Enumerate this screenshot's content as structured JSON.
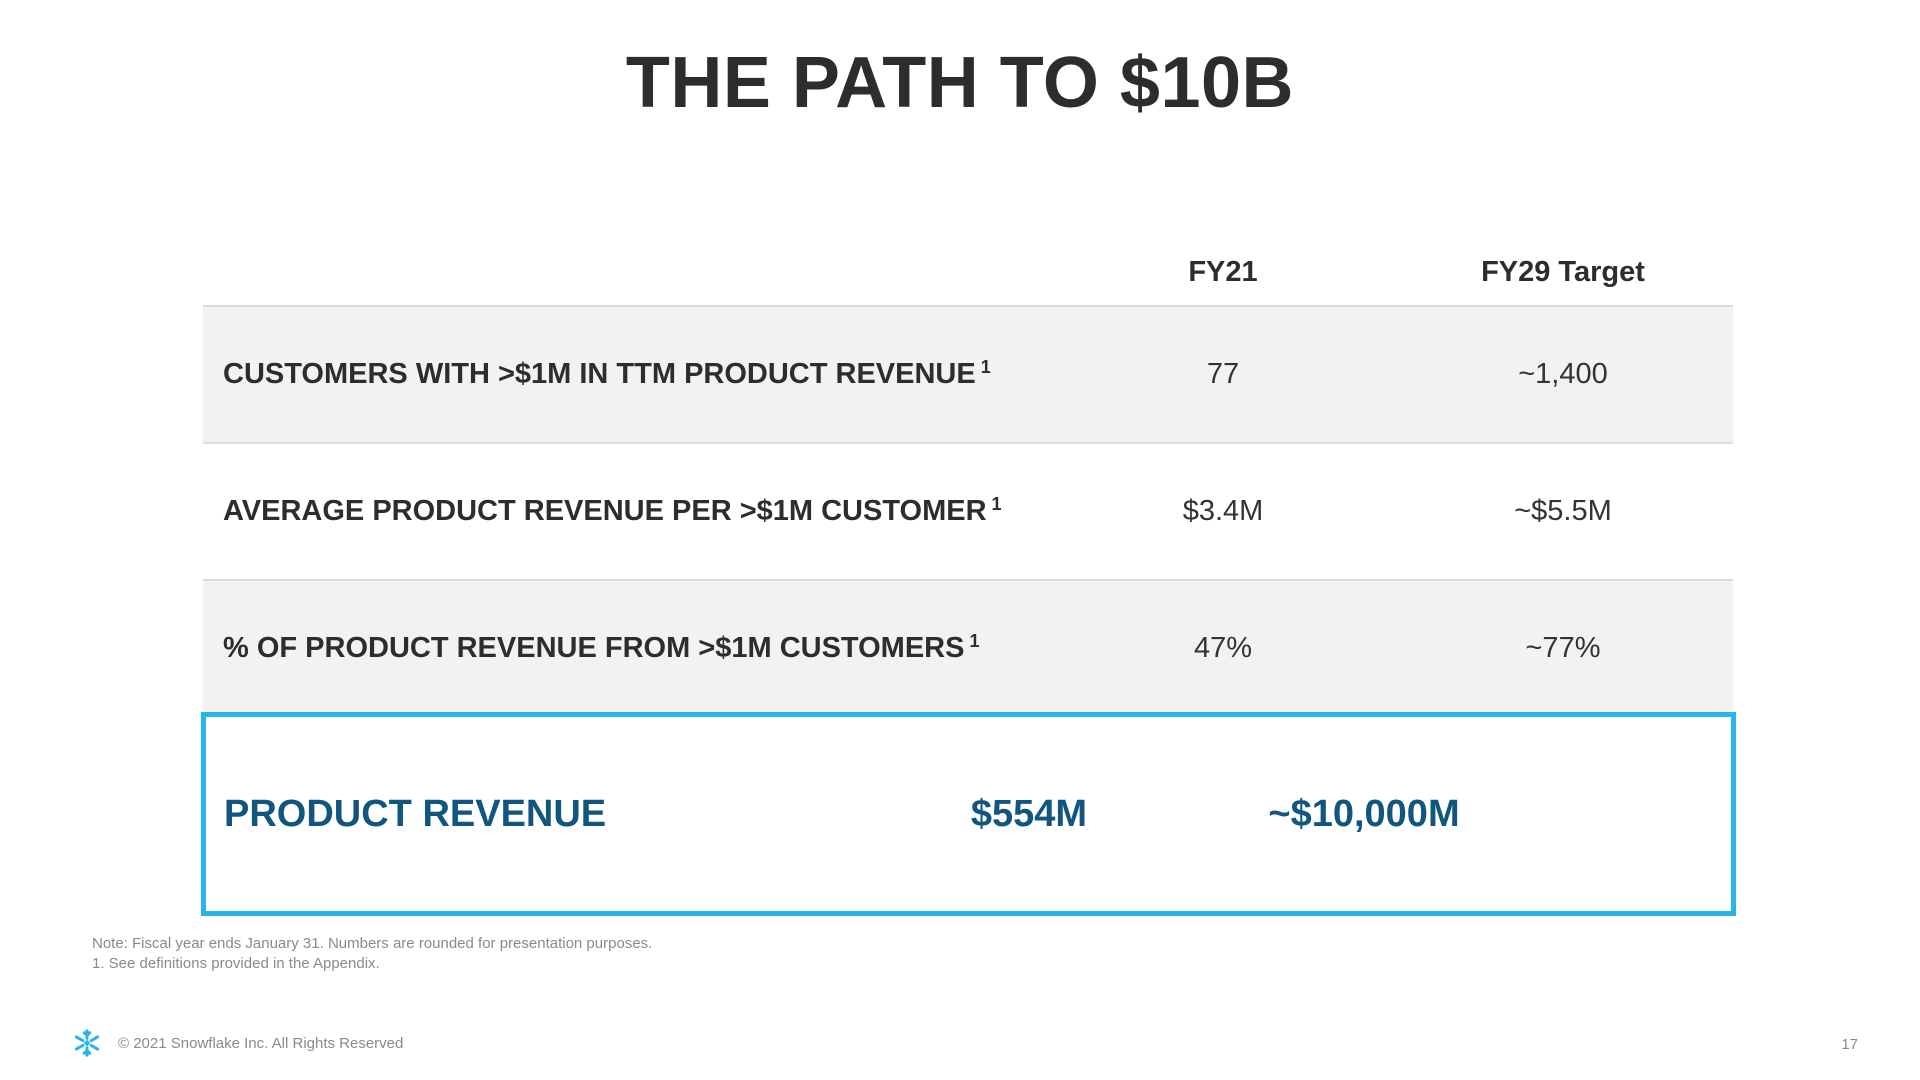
{
  "title": "THE PATH TO $10B",
  "columns": {
    "fy21": "FY21",
    "fy29": "FY29 Target"
  },
  "rows": [
    {
      "label": "CUSTOMERS WITH >$1M IN TTM PRODUCT REVENUE",
      "footnote": "1",
      "fy21": "77",
      "fy29": "~1,400"
    },
    {
      "label": "AVERAGE PRODUCT REVENUE PER >$1M CUSTOMER",
      "footnote": "1",
      "fy21": "$3.4M",
      "fy29": "~$5.5M"
    },
    {
      "label": "% OF PRODUCT REVENUE FROM >$1M CUSTOMERS",
      "footnote": "1",
      "fy21": "47%",
      "fy29": "~77%"
    }
  ],
  "highlight": {
    "label": "PRODUCT REVENUE",
    "fy21": "$554M",
    "fy29": "~$10,000M"
  },
  "notes": {
    "line1": "Note:  Fiscal year ends January 31. Numbers are rounded for presentation purposes.",
    "line2": "1.  See definitions provided in the Appendix."
  },
  "footer": {
    "logo_icon": "snowflake-icon",
    "copyright": "© 2021 Snowflake Inc. All Rights Reserved",
    "page_number": "17"
  },
  "colors": {
    "title": "#2d2d2d",
    "highlight_border": "#29b5e8",
    "highlight_text": "#11567f",
    "row_shade": "#f2f2f2",
    "muted_text": "#8a8a8a"
  }
}
